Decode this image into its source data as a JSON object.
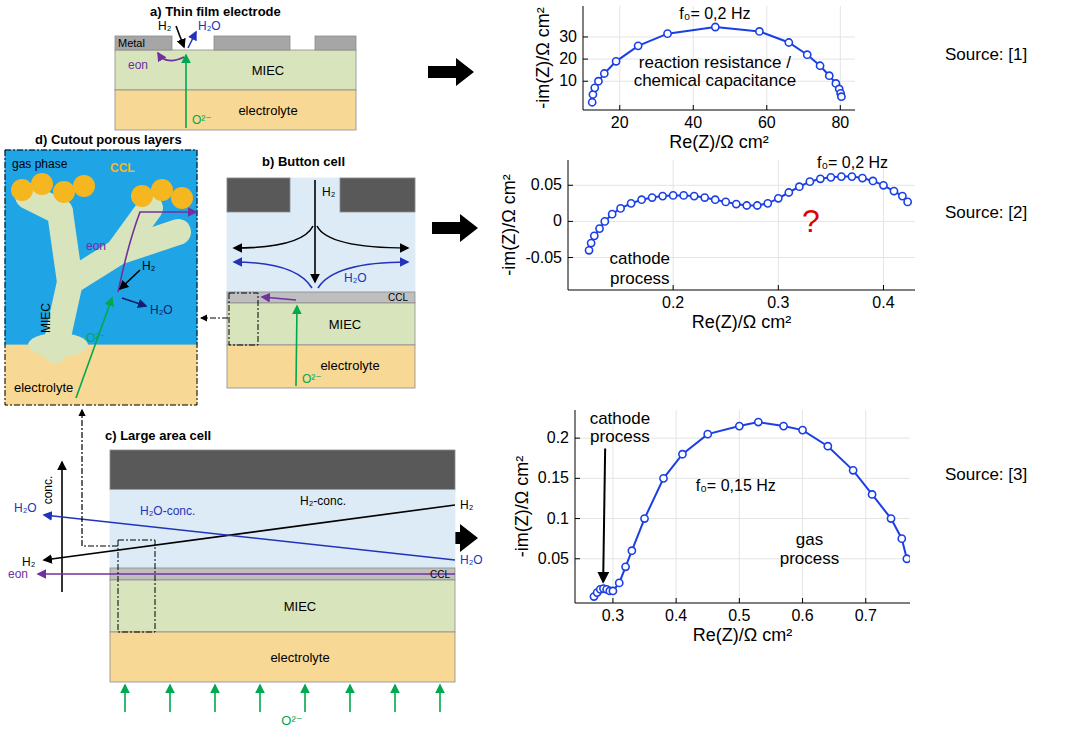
{
  "diagram": {
    "thin_film": {
      "title": "a) Thin film electrode",
      "metal": "Metal",
      "h2": "H₂",
      "h2o": "H₂O",
      "eon": "eon",
      "miec": "MIEC",
      "o2": "O²⁻",
      "electrolyte": "electrolyte"
    },
    "button_cell": {
      "title": "b) Button cell",
      "h2": "H₂",
      "h2o": "H₂O",
      "ccl": "CCL",
      "miec": "MIEC",
      "o2": "O²⁻",
      "electrolyte": "electrolyte"
    },
    "cutout": {
      "title": "d) Cutout porous layers",
      "gas": "gas phase",
      "ccl": "CCL",
      "eon": "eon",
      "h2": "H₂",
      "h2o": "H₂O",
      "miec": "MIEC",
      "o2": "O²⁻",
      "electrolyte": "electrolyte"
    },
    "large_cell": {
      "title": "c) Large area cell",
      "conc": "conc.",
      "h2o_conc": "H₂O-conc.",
      "h2_conc": "H₂-conc.",
      "h2_left": "H₂",
      "h2_right": "H₂",
      "h2o_left": "H₂O",
      "h2o_right": "H₂O",
      "eon": "eon",
      "ccl": "CCL",
      "miec": "MIEC",
      "electrolyte": "electrolyte",
      "o2": "O²⁻"
    }
  },
  "chart_data": [
    {
      "type": "line",
      "marker": "circle",
      "line_style": "solid",
      "color": "#1a3fe6",
      "grid": true,
      "xlabel": "Re(Z)/Ω cm²",
      "ylabel": "-im(Z)/Ω cm²",
      "source": "Source: [1]",
      "xlim": [
        10,
        84
      ],
      "xticks": [
        20,
        40,
        60,
        80
      ],
      "ylim": [
        -3,
        44
      ],
      "yticks": [
        10,
        20,
        30
      ],
      "x": [
        12.5,
        12.7,
        13.2,
        14.2,
        15.8,
        19,
        25,
        33,
        46,
        58,
        66,
        71,
        74.5,
        77,
        78.8,
        79.7,
        80.1,
        80.3
      ],
      "values": [
        0.5,
        4,
        7,
        10,
        13.5,
        19,
        26,
        31.5,
        34.5,
        32.5,
        27.5,
        22,
        17,
        12.5,
        9,
        6.5,
        4.5,
        3
      ],
      "annotations": [
        {
          "text": "f₀= 0,2 Hz"
        },
        {
          "text": "reaction resistance /"
        },
        {
          "text": "chemical capacitance"
        }
      ]
    },
    {
      "type": "line",
      "marker": "circle",
      "line_style": "solid",
      "color": "#1a3fe6",
      "grid": true,
      "xlabel": "Re(Z)/Ω cm²",
      "ylabel": "-im(Z)/Ω cm²",
      "source": "Source: [2]",
      "xlim": [
        0.1,
        0.43
      ],
      "xticks": [
        0.2,
        0.3,
        0.4
      ],
      "ylim": [
        -0.095,
        0.085
      ],
      "yticks": [
        -0.05,
        0,
        0.05
      ],
      "x": [
        0.12,
        0.122,
        0.125,
        0.13,
        0.135,
        0.142,
        0.15,
        0.16,
        0.17,
        0.18,
        0.19,
        0.2,
        0.21,
        0.22,
        0.23,
        0.24,
        0.25,
        0.26,
        0.27,
        0.28,
        0.29,
        0.3,
        0.31,
        0.32,
        0.33,
        0.34,
        0.35,
        0.36,
        0.37,
        0.38,
        0.39,
        0.4,
        0.41,
        0.418,
        0.423
      ],
      "values": [
        -0.04,
        -0.03,
        -0.02,
        -0.01,
        0,
        0.01,
        0.018,
        0.025,
        0.03,
        0.033,
        0.035,
        0.036,
        0.036,
        0.035,
        0.033,
        0.03,
        0.027,
        0.024,
        0.022,
        0.022,
        0.025,
        0.032,
        0.04,
        0.048,
        0.055,
        0.059,
        0.061,
        0.062,
        0.062,
        0.06,
        0.056,
        0.05,
        0.042,
        0.035,
        0.027
      ],
      "annotations": [
        {
          "text": "f₀= 0,2 Hz"
        },
        {
          "text": "cathode"
        },
        {
          "text": "process"
        },
        {
          "text": "?",
          "color": "#e00000"
        }
      ]
    },
    {
      "type": "line",
      "marker": "circle",
      "line_style": "solid",
      "color": "#1a3fe6",
      "grid": true,
      "xlabel": "Re(Z)/Ω cm²",
      "ylabel": "-im(Z)/Ω cm²",
      "source": "Source: [3]",
      "xlim": [
        0.24,
        0.77
      ],
      "xticks": [
        0.3,
        0.4,
        0.5,
        0.6,
        0.7
      ],
      "ylim": [
        -0.005,
        0.235
      ],
      "yticks": [
        0.05,
        0.1,
        0.15,
        0.2
      ],
      "x": [
        0.27,
        0.275,
        0.28,
        0.285,
        0.29,
        0.295,
        0.3,
        0.31,
        0.32,
        0.33,
        0.35,
        0.38,
        0.41,
        0.45,
        0.5,
        0.53,
        0.57,
        0.6,
        0.64,
        0.68,
        0.71,
        0.74,
        0.757,
        0.765
      ],
      "values": [
        0.003,
        0.008,
        0.012,
        0.013,
        0.012,
        0.01,
        0.01,
        0.02,
        0.04,
        0.06,
        0.1,
        0.15,
        0.18,
        0.205,
        0.215,
        0.22,
        0.215,
        0.21,
        0.19,
        0.16,
        0.13,
        0.1,
        0.075,
        0.05
      ],
      "annotations": [
        {
          "text": "cathode"
        },
        {
          "text": "process"
        },
        {
          "text": "f₀= 0,15 Hz"
        },
        {
          "text": "gas"
        },
        {
          "text": "process"
        }
      ]
    }
  ]
}
